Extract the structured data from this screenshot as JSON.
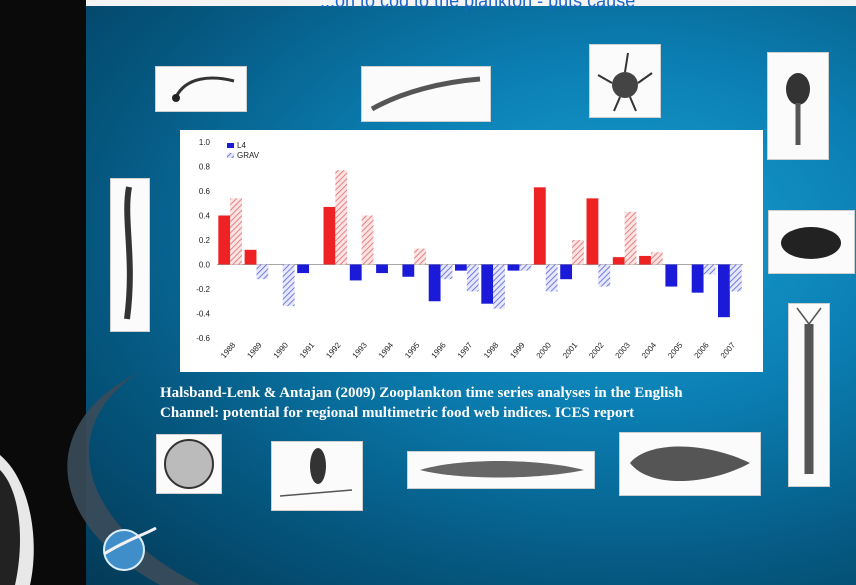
{
  "header": {
    "cutoff_text": "...on to cod to the plankton - puts cause"
  },
  "caption": {
    "line1": "Halsband-Lenk & Antajan (2009) Zooplankton time series analyses in the English",
    "line2": "Channel: potential for regional multimetric food web indices. ICES report"
  },
  "colors": {
    "L4": "#ee2222",
    "GRAV": "#e9a0a0",
    "negative_L4": "#1a1ad8",
    "negative_GRAV": "#6f74e0"
  },
  "chart_data": {
    "type": "bar",
    "categories": [
      "1988",
      "1989",
      "1990",
      "1991",
      "1992",
      "1993",
      "1994",
      "1995",
      "1996",
      "1997",
      "1998",
      "1999",
      "2000",
      "2001",
      "2002",
      "2003",
      "2004",
      "2005",
      "2006",
      "2007"
    ],
    "series": [
      {
        "name": "L4",
        "values": [
          0.4,
          0.12,
          0.0,
          -0.07,
          0.47,
          -0.13,
          -0.07,
          -0.1,
          -0.3,
          -0.05,
          -0.32,
          -0.05,
          0.63,
          -0.12,
          0.54,
          0.06,
          0.07,
          -0.18,
          -0.23,
          -0.43
        ]
      },
      {
        "name": "GRAV",
        "values": [
          0.54,
          -0.12,
          -0.34,
          0.0,
          0.77,
          0.4,
          0.0,
          0.13,
          -0.12,
          -0.22,
          -0.36,
          -0.05,
          -0.22,
          0.2,
          -0.18,
          0.43,
          0.1,
          0.0,
          -0.08,
          -0.22
        ]
      }
    ],
    "yticks": [
      "1.0",
      "0.8",
      "0.6",
      "0.4",
      "0.2",
      "0.0",
      "-0.2",
      "-0.4",
      "-0.6"
    ],
    "ylim": [
      -0.6,
      1.0
    ],
    "legend": {
      "placement": "top-left",
      "entries": [
        "L4",
        "GRAV"
      ]
    }
  },
  "thumbnails": [
    {
      "id": "worm-larva-icon"
    },
    {
      "id": "arrow-worm-icon"
    },
    {
      "id": "crab-larva-icon"
    },
    {
      "id": "shrimp-larva-icon"
    },
    {
      "id": "polychaete-icon"
    },
    {
      "id": "copepod-icon"
    },
    {
      "id": "mysid-shrimp-icon"
    },
    {
      "id": "fish-egg-icon"
    },
    {
      "id": "copepod-small-icon"
    },
    {
      "id": "fish-larva-icon"
    },
    {
      "id": "flatfish-larva-icon"
    },
    {
      "id": "globe-logo-icon"
    }
  ]
}
